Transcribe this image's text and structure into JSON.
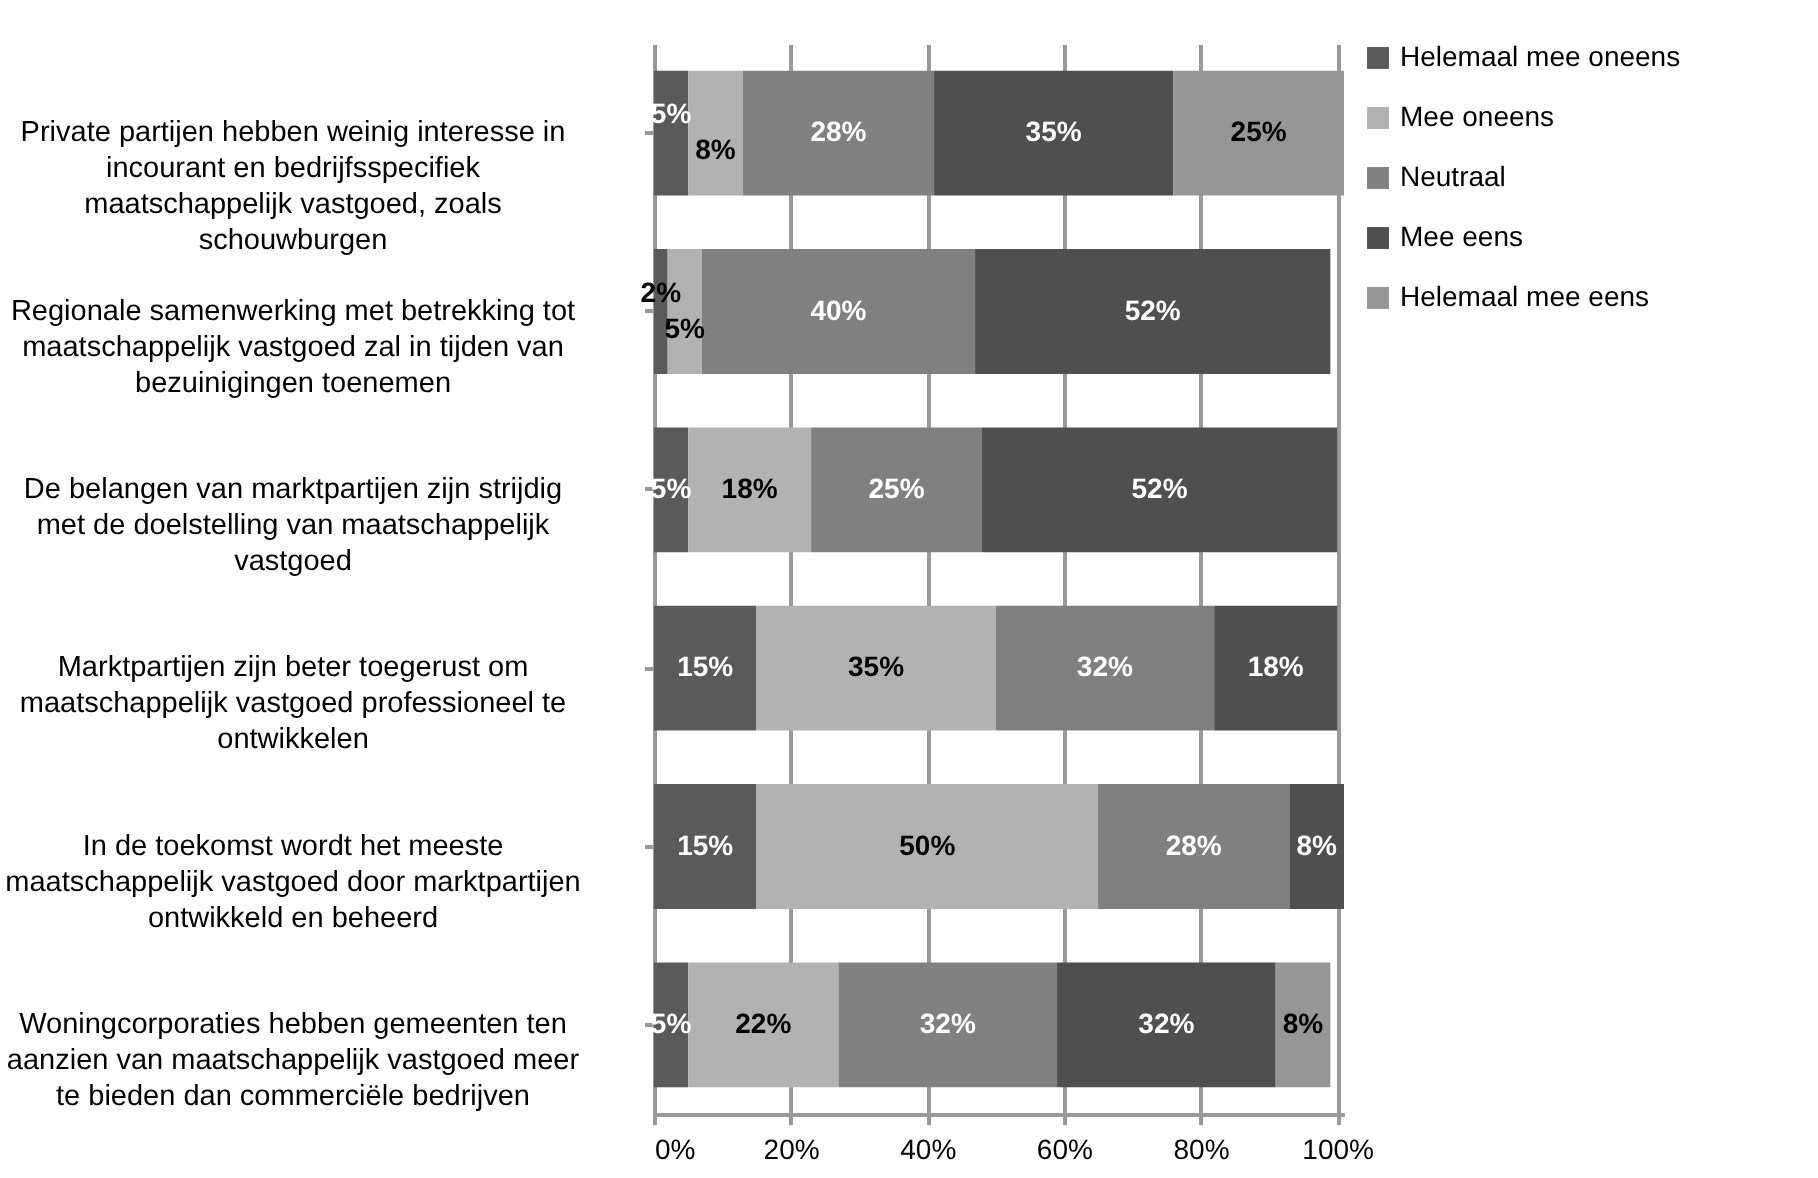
{
  "chart_data": {
    "type": "bar",
    "orientation": "horizontal",
    "stacked": true,
    "grid": "x",
    "legend": "right",
    "categories": [
      "Private partijen hebben weinig interesse in incourant en bedrijfsspecifiek maatschappelijk vastgoed, zoals schouwburgen",
      "Regionale samenwerking met betrekking tot maatschappelijk vastgoed zal in tijden van bezuinigingen toenemen",
      "De belangen van marktpartijen zijn strijdig met de doelstelling van maatschappelijk vastgoed",
      "Marktpartijen zijn beter toegerust om maatschappelijk vastgoed professioneel te ontwikkelen",
      "In de toekomst wordt het meeste maatschappelijk vastgoed door marktpartijen ontwikkeld en beheerd",
      "Woningcorporaties hebben gemeenten ten aanzien van maatschappelijk vastgoed meer te bieden dan commerciële bedrijven"
    ],
    "series": [
      {
        "name": "Helemaal mee oneens",
        "color": "#5a5a5a",
        "values": [
          5,
          2,
          5,
          15,
          15,
          5
        ],
        "value_labels": [
          "5%",
          "2%",
          "5%",
          "15%",
          "15%",
          "5%"
        ]
      },
      {
        "name": "Mee oneens",
        "color": "#b2b2b2",
        "values": [
          8,
          5,
          18,
          35,
          50,
          22
        ],
        "value_labels": [
          "8%",
          "5%",
          "18%",
          "35%",
          "50%",
          "22%"
        ]
      },
      {
        "name": "Neutraal",
        "color": "#808080",
        "values": [
          28,
          40,
          25,
          32,
          28,
          32
        ],
        "value_labels": [
          "28%",
          "40%",
          "25%",
          "32%",
          "28%",
          "32%"
        ]
      },
      {
        "name": "Mee eens",
        "color": "#4f4f4f",
        "values": [
          35,
          52,
          52,
          18,
          8,
          32
        ],
        "value_labels": [
          "35%",
          "52%",
          "52%",
          "18%",
          "8%",
          "32%"
        ]
      },
      {
        "name": "Helemaal mee eens",
        "color": "#969696",
        "values": [
          25,
          null,
          null,
          null,
          null,
          8
        ],
        "value_labels": [
          "25%",
          null,
          null,
          null,
          null,
          "8%"
        ]
      }
    ],
    "xlim": [
      0,
      101
    ],
    "xticks": [
      {
        "value": 0,
        "label": "0%"
      },
      {
        "value": 20,
        "label": "20%"
      },
      {
        "value": 40,
        "label": "40%"
      },
      {
        "value": 60,
        "label": "60%"
      },
      {
        "value": 80,
        "label": "80%"
      },
      {
        "value": 100,
        "label": "100%"
      }
    ]
  }
}
